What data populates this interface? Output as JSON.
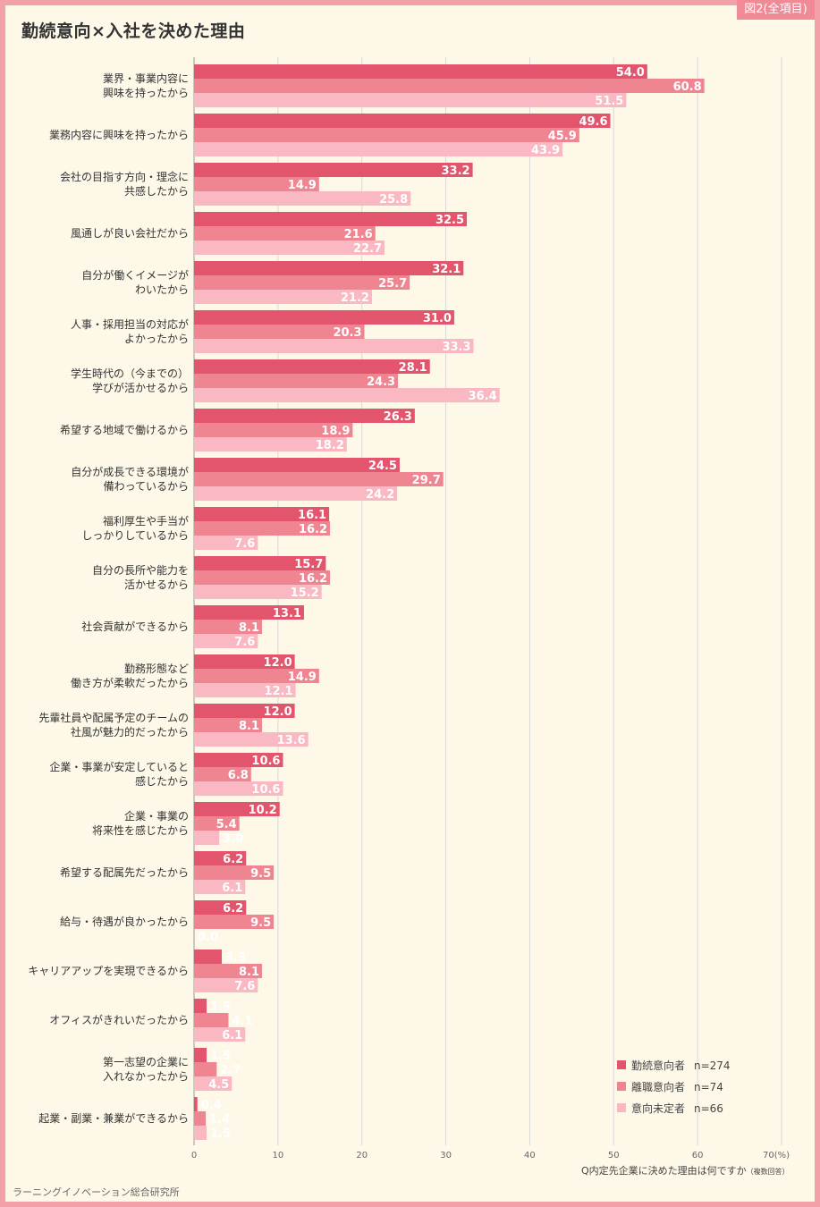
{
  "title": "勤続意向×入社を決めた理由",
  "badge": "図2(全項目)",
  "question": "Q内定先企業に決めた理由は何ですか",
  "question_note": "（複数回答）",
  "source": "ラーニングイノベーション総合研究所",
  "colors": {
    "s0": "#e2556c",
    "s1": "#f08592",
    "s2": "#f9b8c2",
    "grid": "#d8d8d8",
    "axis": "#999999"
  },
  "chart_data": {
    "type": "bar",
    "orientation": "horizontal",
    "title": "勤続意向×入社を決めた理由",
    "xlim": [
      0,
      70
    ],
    "xticks": [
      "0",
      "10",
      "20",
      "30",
      "40",
      "50",
      "60",
      "70(%)"
    ],
    "xtick_values": [
      0,
      10,
      20,
      30,
      40,
      50,
      60,
      70
    ],
    "legend_position": "bottom-right",
    "categories": [
      [
        "業界・事業内容に",
        "興味を持ったから"
      ],
      [
        "業務内容に興味を持ったから"
      ],
      [
        "会社の目指す方向・理念に",
        "共感したから"
      ],
      [
        "風通しが良い会社だから"
      ],
      [
        "自分が働くイメージが",
        "わいたから"
      ],
      [
        "人事・採用担当の対応が",
        "よかったから"
      ],
      [
        "学生時代の（今までの）",
        "学びが活かせるから"
      ],
      [
        "希望する地域で働けるから"
      ],
      [
        "自分が成長できる環境が",
        "備わっているから"
      ],
      [
        "福利厚生や手当が",
        "しっかりしているから"
      ],
      [
        "自分の長所や能力を",
        "活かせるから"
      ],
      [
        "社会貢献ができるから"
      ],
      [
        "勤務形態など",
        "働き方が柔軟だったから"
      ],
      [
        "先輩社員や配属予定のチームの",
        "社風が魅力的だったから"
      ],
      [
        "企業・事業が安定していると",
        "感じたから"
      ],
      [
        "企業・事業の",
        "将来性を感じたから"
      ],
      [
        "希望する配属先だったから"
      ],
      [
        "給与・待遇が良かったから"
      ],
      [
        "キャリアアップを実現できるから"
      ],
      [
        "オフィスがきれいだったから"
      ],
      [
        "第一志望の企業に",
        "入れなかったから"
      ],
      [
        "起業・副業・兼業ができるから"
      ]
    ],
    "series": [
      {
        "name": "勤続意向者",
        "n": "n=274",
        "values": [
          54.0,
          49.6,
          33.2,
          32.5,
          32.1,
          31.0,
          28.1,
          26.3,
          24.5,
          16.1,
          15.7,
          13.1,
          12.0,
          12.0,
          10.6,
          10.2,
          6.2,
          6.2,
          3.3,
          1.5,
          1.5,
          0.4
        ]
      },
      {
        "name": "離職意向者",
        "n": "n=74",
        "values": [
          60.8,
          45.9,
          14.9,
          21.6,
          25.7,
          20.3,
          24.3,
          18.9,
          29.7,
          16.2,
          16.2,
          8.1,
          14.9,
          8.1,
          6.8,
          5.4,
          9.5,
          9.5,
          8.1,
          4.1,
          2.7,
          1.4
        ]
      },
      {
        "name": "意向未定者",
        "n": "n=66",
        "values": [
          51.5,
          43.9,
          25.8,
          22.7,
          21.2,
          33.3,
          36.4,
          18.2,
          24.2,
          7.6,
          15.2,
          7.6,
          12.1,
          13.6,
          10.6,
          3.0,
          6.1,
          0.0,
          7.6,
          6.1,
          4.5,
          1.5
        ]
      }
    ]
  }
}
